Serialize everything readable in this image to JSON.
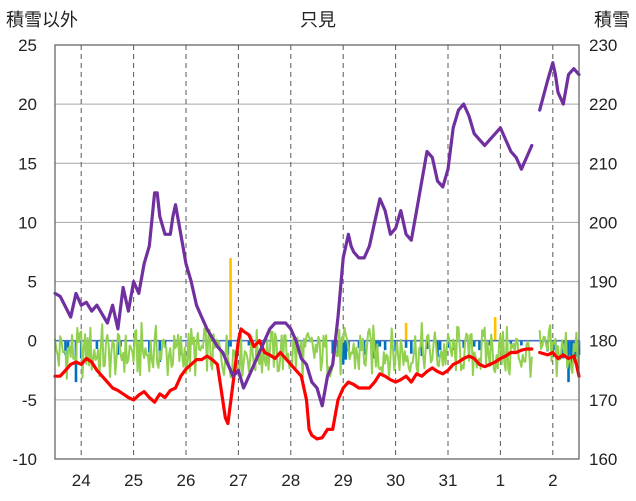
{
  "chart_data": {
    "type": "line",
    "title": "只見",
    "ylabel_left": "積雪以外",
    "ylabel_right": "積雪",
    "y_left": {
      "min": -10,
      "max": 25,
      "ticks": [
        25,
        20,
        15,
        10,
        5,
        0,
        -5,
        -10
      ]
    },
    "y_right": {
      "min": 160,
      "max": 230,
      "ticks": [
        230,
        220,
        210,
        200,
        190,
        180,
        170,
        160
      ]
    },
    "x": {
      "min": 23.5,
      "max": 33.5,
      "day_boundaries": [
        24,
        25,
        26,
        27,
        28,
        29,
        30,
        31,
        32,
        33
      ],
      "tick_labels": [
        "24",
        "25",
        "26",
        "27",
        "28",
        "29",
        "30",
        "31",
        "1",
        "2"
      ]
    },
    "grid": true,
    "colors": {
      "snow_depth": "#7030a0",
      "temperature": "#ff0000",
      "wind": "#92d050",
      "precip_bar": "#0070c0",
      "snowfall_bar": "#ffc000",
      "zero_line": "#4472c4"
    },
    "series": [
      {
        "key": "snow_depth",
        "axis": "right",
        "kind": "line",
        "points": [
          [
            23.5,
            188
          ],
          [
            23.6,
            187.5
          ],
          [
            23.8,
            184
          ],
          [
            23.9,
            188
          ],
          [
            24.0,
            186
          ],
          [
            24.1,
            186.5
          ],
          [
            24.2,
            185
          ],
          [
            24.3,
            186
          ],
          [
            24.5,
            183
          ],
          [
            24.6,
            186
          ],
          [
            24.7,
            182
          ],
          [
            24.8,
            189
          ],
          [
            24.9,
            185
          ],
          [
            25.0,
            190
          ],
          [
            25.1,
            188
          ],
          [
            25.2,
            193
          ],
          [
            25.3,
            196
          ],
          [
            25.4,
            205
          ],
          [
            25.45,
            205
          ],
          [
            25.5,
            201
          ],
          [
            25.6,
            198
          ],
          [
            25.7,
            198
          ],
          [
            25.75,
            201
          ],
          [
            25.8,
            203
          ],
          [
            25.9,
            198
          ],
          [
            26.0,
            193
          ],
          [
            26.1,
            190
          ],
          [
            26.2,
            186
          ],
          [
            26.3,
            184
          ],
          [
            26.4,
            182
          ],
          [
            26.5,
            180.5
          ],
          [
            26.6,
            179
          ],
          [
            26.7,
            178
          ],
          [
            26.8,
            176
          ],
          [
            26.9,
            174
          ],
          [
            27.0,
            175
          ],
          [
            27.1,
            172
          ],
          [
            27.2,
            174
          ],
          [
            27.3,
            176
          ],
          [
            27.4,
            178
          ],
          [
            27.5,
            180
          ],
          [
            27.6,
            182
          ],
          [
            27.7,
            183
          ],
          [
            27.8,
            183
          ],
          [
            27.9,
            183
          ],
          [
            28.0,
            182
          ],
          [
            28.1,
            180
          ],
          [
            28.2,
            177
          ],
          [
            28.3,
            176
          ],
          [
            28.4,
            173
          ],
          [
            28.5,
            172
          ],
          [
            28.6,
            169
          ],
          [
            28.7,
            174
          ],
          [
            28.8,
            176
          ],
          [
            28.9,
            184
          ],
          [
            29.0,
            194
          ],
          [
            29.1,
            198
          ],
          [
            29.15,
            196
          ],
          [
            29.2,
            195
          ],
          [
            29.3,
            194
          ],
          [
            29.4,
            194
          ],
          [
            29.5,
            196
          ],
          [
            29.6,
            200
          ],
          [
            29.7,
            204
          ],
          [
            29.8,
            202
          ],
          [
            29.9,
            198
          ],
          [
            30.0,
            199
          ],
          [
            30.1,
            202
          ],
          [
            30.2,
            198
          ],
          [
            30.3,
            197
          ],
          [
            30.4,
            202
          ],
          [
            30.5,
            207
          ],
          [
            30.6,
            212
          ],
          [
            30.7,
            211
          ],
          [
            30.8,
            207
          ],
          [
            30.9,
            206
          ],
          [
            31.0,
            209
          ],
          [
            31.1,
            216
          ],
          [
            31.2,
            219
          ],
          [
            31.3,
            220
          ],
          [
            31.4,
            218
          ],
          [
            31.5,
            215
          ],
          [
            31.6,
            214
          ],
          [
            31.7,
            213
          ],
          [
            31.8,
            214
          ],
          [
            31.9,
            215
          ],
          [
            32.0,
            216
          ],
          [
            32.1,
            214
          ],
          [
            32.2,
            212
          ],
          [
            32.3,
            211
          ],
          [
            32.4,
            209
          ],
          [
            32.5,
            211
          ],
          [
            32.6,
            213
          ]
        ],
        "gap_after": 32.6,
        "points_b": [
          [
            32.75,
            219
          ],
          [
            32.9,
            224
          ],
          [
            33.0,
            227
          ],
          [
            33.05,
            225
          ],
          [
            33.1,
            222
          ],
          [
            33.2,
            220
          ],
          [
            33.3,
            225
          ],
          [
            33.4,
            226
          ],
          [
            33.5,
            225
          ]
        ]
      },
      {
        "key": "temperature",
        "axis": "left",
        "kind": "line",
        "points": [
          [
            23.5,
            -3
          ],
          [
            23.6,
            -3
          ],
          [
            23.7,
            -2.5
          ],
          [
            23.8,
            -2
          ],
          [
            23.9,
            -1.8
          ],
          [
            24.0,
            -2
          ],
          [
            24.1,
            -1.5
          ],
          [
            24.2,
            -1.8
          ],
          [
            24.3,
            -2.5
          ],
          [
            24.4,
            -3
          ],
          [
            24.5,
            -3.5
          ],
          [
            24.6,
            -4
          ],
          [
            24.7,
            -4.2
          ],
          [
            24.8,
            -4.5
          ],
          [
            24.9,
            -4.8
          ],
          [
            25.0,
            -5
          ],
          [
            25.1,
            -4.6
          ],
          [
            25.2,
            -4.3
          ],
          [
            25.3,
            -4.8
          ],
          [
            25.4,
            -5.2
          ],
          [
            25.5,
            -4.5
          ],
          [
            25.6,
            -4.8
          ],
          [
            25.7,
            -4.2
          ],
          [
            25.8,
            -4
          ],
          [
            25.9,
            -3
          ],
          [
            26.0,
            -2.4
          ],
          [
            26.1,
            -2
          ],
          [
            26.2,
            -1.6
          ],
          [
            26.3,
            -1.6
          ],
          [
            26.4,
            -1.3
          ],
          [
            26.5,
            -1.6
          ],
          [
            26.6,
            -2
          ],
          [
            26.7,
            -5
          ],
          [
            26.75,
            -6.5
          ],
          [
            26.8,
            -7
          ],
          [
            26.9,
            -3.5
          ],
          [
            27.0,
            0
          ],
          [
            27.05,
            1
          ],
          [
            27.1,
            0.8
          ],
          [
            27.2,
            0.5
          ],
          [
            27.3,
            -0.5
          ],
          [
            27.4,
            0
          ],
          [
            27.5,
            -1
          ],
          [
            27.6,
            -1.2
          ],
          [
            27.7,
            -1.5
          ],
          [
            27.8,
            -1
          ],
          [
            27.9,
            -1.5
          ],
          [
            28.0,
            -2
          ],
          [
            28.1,
            -2.5
          ],
          [
            28.2,
            -3
          ],
          [
            28.3,
            -5
          ],
          [
            28.35,
            -7.5
          ],
          [
            28.4,
            -8
          ],
          [
            28.5,
            -8.3
          ],
          [
            28.6,
            -8.2
          ],
          [
            28.7,
            -7.5
          ],
          [
            28.8,
            -7.5
          ],
          [
            28.9,
            -5
          ],
          [
            29.0,
            -4
          ],
          [
            29.1,
            -3.5
          ],
          [
            29.2,
            -3.7
          ],
          [
            29.3,
            -4
          ],
          [
            29.4,
            -4
          ],
          [
            29.5,
            -4
          ],
          [
            29.6,
            -3.5
          ],
          [
            29.7,
            -2.8
          ],
          [
            29.8,
            -3
          ],
          [
            29.9,
            -3.3
          ],
          [
            30.0,
            -3.5
          ],
          [
            30.1,
            -3.3
          ],
          [
            30.2,
            -3
          ],
          [
            30.3,
            -3.5
          ],
          [
            30.4,
            -2.8
          ],
          [
            30.5,
            -3
          ],
          [
            30.6,
            -2.6
          ],
          [
            30.7,
            -2.3
          ],
          [
            30.8,
            -2.6
          ],
          [
            30.9,
            -2.8
          ],
          [
            31.0,
            -2.5
          ],
          [
            31.1,
            -2
          ],
          [
            31.2,
            -1.8
          ],
          [
            31.3,
            -1.5
          ],
          [
            31.4,
            -1.3
          ],
          [
            31.5,
            -1.5
          ],
          [
            31.6,
            -2
          ],
          [
            31.7,
            -2.2
          ],
          [
            31.8,
            -2
          ],
          [
            31.9,
            -1.8
          ],
          [
            32.0,
            -1.5
          ],
          [
            32.1,
            -1.3
          ],
          [
            32.2,
            -1
          ],
          [
            32.3,
            -1
          ],
          [
            32.4,
            -0.8
          ],
          [
            32.5,
            -0.7
          ],
          [
            32.6,
            -0.7
          ]
        ],
        "gap_after": 32.6,
        "points_b": [
          [
            32.75,
            -1
          ],
          [
            32.9,
            -1.2
          ],
          [
            33.0,
            -1
          ],
          [
            33.1,
            -1.5
          ],
          [
            33.2,
            -1.2
          ],
          [
            33.3,
            -1.5
          ],
          [
            33.4,
            -1.3
          ],
          [
            33.45,
            -2
          ],
          [
            33.5,
            -3
          ]
        ]
      },
      {
        "key": "wind",
        "axis": "left",
        "kind": "noisy_line",
        "base": -1,
        "amplitude": 2.6,
        "step": 0.025,
        "ranges": [
          [
            23.5,
            32.6
          ],
          [
            32.75,
            33.5
          ]
        ]
      },
      {
        "key": "precip_bar",
        "axis": "left",
        "kind": "bars",
        "bars": [
          [
            23.7,
            -1.2
          ],
          [
            23.75,
            -0.6
          ],
          [
            23.9,
            -3.5
          ],
          [
            24.0,
            -1.5
          ],
          [
            24.3,
            -0.7
          ],
          [
            24.7,
            -1.2
          ],
          [
            24.75,
            -0.5
          ],
          [
            25.3,
            -1
          ],
          [
            25.5,
            -1.8
          ],
          [
            25.6,
            -0.6
          ],
          [
            25.9,
            -1.2
          ],
          [
            26.4,
            -0.6
          ],
          [
            26.8,
            -1.2
          ],
          [
            26.85,
            -0.5
          ],
          [
            27.2,
            -0.4
          ],
          [
            28.8,
            -1.1
          ],
          [
            28.9,
            -1.3
          ],
          [
            29.0,
            -2
          ],
          [
            29.05,
            -1.6
          ],
          [
            29.1,
            -0.9
          ],
          [
            29.3,
            -0.6
          ],
          [
            29.4,
            -1.2
          ],
          [
            29.6,
            -1.5
          ],
          [
            29.65,
            -1.2
          ],
          [
            29.7,
            -0.5
          ],
          [
            29.8,
            -0.8
          ],
          [
            30.0,
            -0.9
          ],
          [
            30.2,
            -0.6
          ],
          [
            30.3,
            -1.1
          ],
          [
            30.5,
            -1.3
          ],
          [
            30.6,
            -0.7
          ],
          [
            30.8,
            -1.4
          ],
          [
            30.85,
            -0.8
          ],
          [
            31.0,
            -0.6
          ],
          [
            31.1,
            -0.8
          ],
          [
            31.3,
            -0.6
          ],
          [
            31.5,
            -0.5
          ],
          [
            31.6,
            -0.8
          ],
          [
            31.8,
            -0.4
          ],
          [
            32.0,
            -0.6
          ],
          [
            32.2,
            -0.3
          ],
          [
            32.4,
            -0.4
          ],
          [
            32.8,
            -0.4
          ],
          [
            32.9,
            -0.9
          ],
          [
            33.0,
            -1.4
          ],
          [
            33.05,
            -0.8
          ],
          [
            33.2,
            -1.5
          ],
          [
            33.25,
            -1.2
          ],
          [
            33.3,
            -3.5
          ],
          [
            33.35,
            -2.2
          ],
          [
            33.4,
            -1.6
          ],
          [
            33.45,
            -1.4
          ],
          [
            33.5,
            -1.2
          ]
        ]
      },
      {
        "key": "snowfall_bar",
        "axis": "left",
        "kind": "bars",
        "bars": [
          [
            26.85,
            7
          ],
          [
            30.2,
            1.5
          ],
          [
            31.9,
            2
          ]
        ]
      }
    ]
  }
}
